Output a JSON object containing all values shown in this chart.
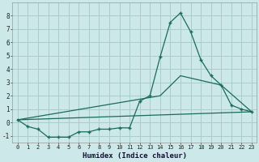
{
  "xlabel": "Humidex (Indice chaleur)",
  "bg_color": "#cce8e8",
  "grid_color": "#aacccc",
  "line_color": "#1a6b5a",
  "line1_x": [
    0,
    1,
    2,
    3,
    4,
    5,
    6,
    7,
    8,
    9,
    10,
    11,
    12,
    13,
    14,
    15,
    16,
    17,
    18,
    19,
    20,
    21,
    22,
    23
  ],
  "line1_y": [
    0.2,
    -0.3,
    -0.5,
    -1.1,
    -1.1,
    -1.1,
    -0.7,
    -0.7,
    -0.5,
    -0.5,
    -0.4,
    -0.4,
    1.6,
    2.0,
    4.9,
    7.5,
    8.2,
    6.8,
    4.7,
    3.5,
    2.8,
    1.3,
    1.0,
    0.8
  ],
  "line2_x": [
    0,
    23
  ],
  "line2_y": [
    0.2,
    0.8
  ],
  "line3_x": [
    0,
    14,
    16,
    20,
    23
  ],
  "line3_y": [
    0.2,
    2.0,
    3.5,
    2.8,
    0.8
  ],
  "xlim": [
    -0.5,
    23.5
  ],
  "ylim": [
    -1.5,
    9.0
  ],
  "xticks": [
    0,
    1,
    2,
    3,
    4,
    5,
    6,
    7,
    8,
    9,
    10,
    11,
    12,
    13,
    14,
    15,
    16,
    17,
    18,
    19,
    20,
    21,
    22,
    23
  ],
  "yticks": [
    -1,
    0,
    1,
    2,
    3,
    4,
    5,
    6,
    7,
    8
  ]
}
